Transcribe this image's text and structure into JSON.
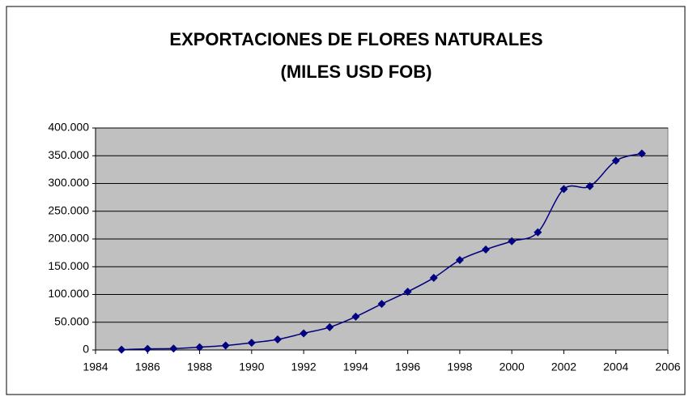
{
  "chart_data": {
    "type": "line",
    "title": "EXPORTACIONES DE FLORES NATURALES",
    "subtitle": "(MILES USD FOB)",
    "x": [
      1985,
      1986,
      1987,
      1988,
      1989,
      1990,
      1991,
      1992,
      1993,
      1994,
      1995,
      1996,
      1997,
      1998,
      1999,
      2000,
      2001,
      2002,
      2003,
      2004,
      2005
    ],
    "series": [
      {
        "color": "#000080",
        "values": [
          500,
          2000,
          2500,
          5000,
          8000,
          13000,
          19000,
          30000,
          41000,
          60000,
          83000,
          105000,
          130000,
          162000,
          181000,
          196000,
          212000,
          290000,
          295000,
          341000,
          354000
        ]
      }
    ],
    "xlim": [
      1984,
      2006
    ],
    "xticks": [
      1984,
      1986,
      1988,
      1990,
      1992,
      1994,
      1996,
      1998,
      2000,
      2002,
      2004,
      2006
    ],
    "ylim": [
      0,
      400000
    ],
    "yticks": [
      0,
      {
        "value": 50000,
        "label": "50.000"
      },
      {
        "value": 100000,
        "label": "100.000"
      },
      {
        "value": 150000,
        "label": "150.000"
      },
      {
        "value": 200000,
        "label": "200.000"
      },
      {
        "value": 250000,
        "label": "250.000"
      },
      {
        "value": 300000,
        "label": "300.000"
      },
      {
        "value": 350000,
        "label": "350.000"
      },
      {
        "value": 400000,
        "label": "400.000"
      }
    ],
    "grid": true,
    "smooth": true,
    "plot_background": "#c0c0c0"
  }
}
